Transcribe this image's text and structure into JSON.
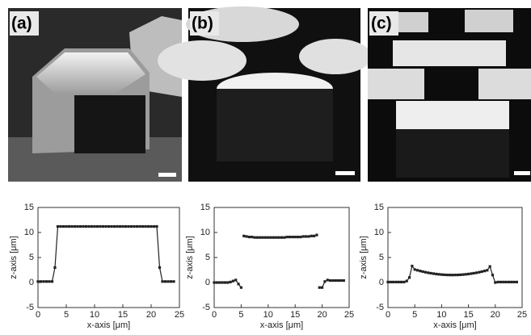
{
  "images": [
    {
      "label": "(a)"
    },
    {
      "label": "(b)"
    },
    {
      "label": "(c)"
    }
  ],
  "chart_data": [
    {
      "type": "line",
      "xlabel": "x-axis [μm]",
      "ylabel": "z-axis [μm]",
      "xlim": [
        0,
        25
      ],
      "ylim": [
        -5,
        15
      ],
      "xticks": [
        0,
        5,
        10,
        15,
        20,
        25
      ],
      "yticks": [
        -5,
        0,
        5,
        10,
        15
      ],
      "series": [
        {
          "color": "#222222",
          "x": [
            0,
            0.5,
            1,
            1.5,
            2,
            2.5,
            3,
            3.5,
            4,
            4.5,
            5,
            5.5,
            6,
            6.5,
            7,
            7.5,
            8,
            8.5,
            9,
            9.5,
            10,
            10.5,
            11,
            11.5,
            12,
            12.5,
            13,
            13.5,
            14,
            14.5,
            15,
            15.5,
            16,
            16.5,
            17,
            17.5,
            18,
            18.5,
            19,
            19.5,
            20,
            20.5,
            21,
            21.5,
            22,
            22.5,
            23,
            23.5,
            24
          ],
          "values": [
            0.2,
            0.2,
            0.2,
            0.2,
            0.2,
            0.2,
            3,
            11.2,
            11.2,
            11.2,
            11.2,
            11.2,
            11.2,
            11.2,
            11.2,
            11.2,
            11.2,
            11.2,
            11.2,
            11.2,
            11.2,
            11.2,
            11.2,
            11.2,
            11.2,
            11.2,
            11.2,
            11.2,
            11.2,
            11.2,
            11.2,
            11.2,
            11.2,
            11.2,
            11.2,
            11.2,
            11.2,
            11.2,
            11.2,
            11.2,
            11.2,
            11.2,
            11.2,
            3,
            0.2,
            0.2,
            0.2,
            0.2,
            0.2
          ]
        }
      ]
    },
    {
      "type": "line",
      "xlabel": "x-axis [μm]",
      "ylabel": "z-axis [μm]",
      "xlim": [
        0,
        25
      ],
      "ylim": [
        -5,
        15
      ],
      "xticks": [
        0,
        5,
        10,
        15,
        20,
        25
      ],
      "yticks": [
        -5,
        0,
        5,
        10,
        15
      ],
      "series": [
        {
          "color": "#222222",
          "x": [
            0,
            0.5,
            1,
            1.5,
            2,
            2.5,
            3,
            3.5,
            4,
            4.5,
            5,
            5.25,
            5.5,
            6,
            6.5,
            7,
            7.5,
            8,
            8.5,
            9,
            9.5,
            10,
            10.5,
            11,
            11.5,
            12,
            12.5,
            13,
            13.5,
            14,
            14.5,
            15,
            15.5,
            16,
            16.5,
            17,
            17.5,
            18,
            18.5,
            19,
            19.25,
            19.5,
            20,
            20.5,
            21,
            21.5,
            22,
            22.5,
            23,
            23.5,
            24
          ],
          "values": [
            0,
            0,
            0,
            0,
            0,
            0,
            0.1,
            0.3,
            0.5,
            -0.3,
            -1,
            null,
            9.3,
            9.2,
            9.1,
            9.1,
            9.0,
            9.0,
            9.0,
            9.0,
            9.0,
            9.0,
            9.0,
            9.0,
            9.0,
            9.0,
            9.0,
            9.0,
            9.1,
            9.1,
            9.1,
            9.1,
            9.1,
            9.1,
            9.2,
            9.2,
            9.2,
            9.3,
            9.3,
            9.5,
            null,
            -1,
            -1,
            0.2,
            0.5,
            0.4,
            0.4,
            0.4,
            0.4,
            0.4,
            0.4
          ]
        }
      ]
    },
    {
      "type": "line",
      "xlabel": "x-axis [μm]",
      "ylabel": "z-axis [μm]",
      "xlim": [
        0,
        25
      ],
      "ylim": [
        -5,
        15
      ],
      "xticks": [
        0,
        5,
        10,
        15,
        20,
        25
      ],
      "yticks": [
        -5,
        0,
        5,
        10,
        15
      ],
      "series": [
        {
          "color": "#222222",
          "x": [
            0,
            0.5,
            1,
            1.5,
            2,
            2.5,
            3,
            3.5,
            4,
            4.5,
            5,
            5.5,
            6,
            6.5,
            7,
            7.5,
            8,
            8.5,
            9,
            9.5,
            10,
            10.5,
            11,
            11.5,
            12,
            12.5,
            13,
            13.5,
            14,
            14.5,
            15,
            15.5,
            16,
            16.5,
            17,
            17.5,
            18,
            18.5,
            19,
            19.5,
            20,
            20.5,
            21,
            21.5,
            22,
            22.5,
            23,
            23.5,
            24
          ],
          "values": [
            0.1,
            0.1,
            0.1,
            0.1,
            0.1,
            0.1,
            0.1,
            0.3,
            1.0,
            3.3,
            2.6,
            2.45,
            2.31,
            2.18,
            2.06,
            1.95,
            1.86,
            1.78,
            1.7,
            1.64,
            1.59,
            1.55,
            1.52,
            1.51,
            1.5,
            1.51,
            1.52,
            1.55,
            1.59,
            1.64,
            1.7,
            1.78,
            1.86,
            1.95,
            2.06,
            2.18,
            2.31,
            2.45,
            3.2,
            1.5,
            0,
            0.1,
            0.1,
            0.1,
            0.1,
            0.1,
            0.1,
            0.1,
            0.1
          ]
        }
      ]
    }
  ]
}
